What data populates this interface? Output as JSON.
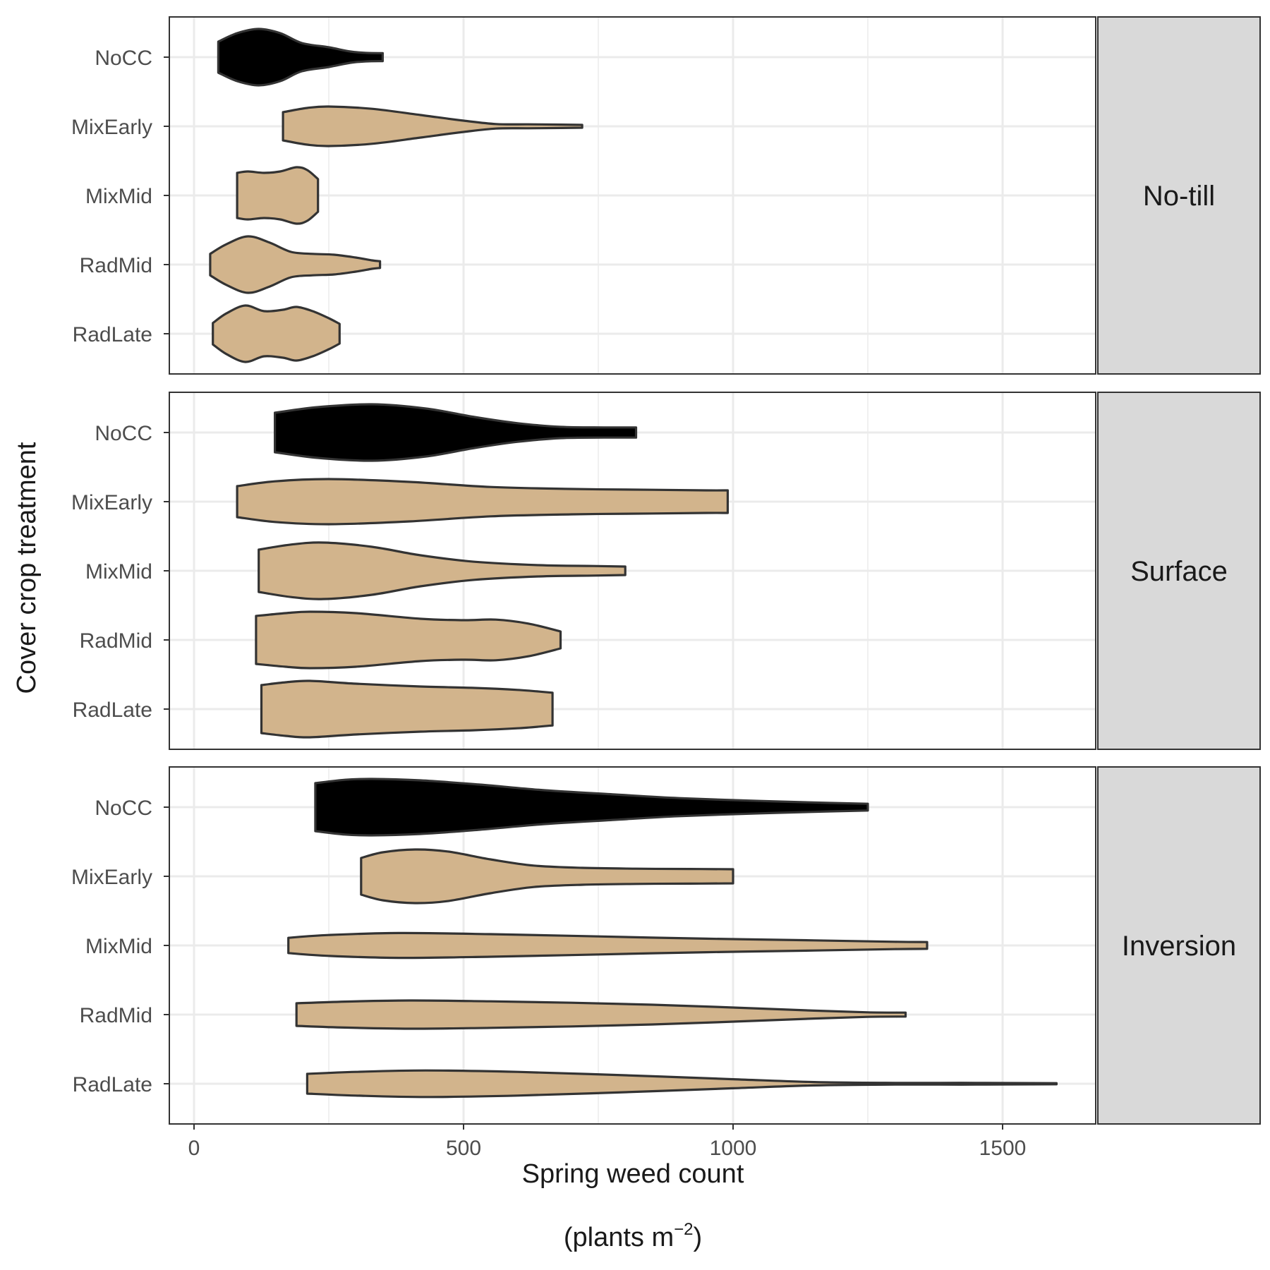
{
  "chart_data": {
    "type": "violin",
    "xlabel": "Spring weed count",
    "xlabel_units": "(plants  m",
    "xlabel_units_sup": "−2",
    "xlabel_units_close": ")",
    "ylabel": "Cover crop treatment",
    "xlim": [
      -50,
      1700
    ],
    "x_ticks": [
      0,
      500,
      1000,
      1500
    ],
    "x_tick_labels": [
      "0",
      "500",
      "1000",
      "1500"
    ],
    "categories": [
      "NoCC",
      "MixEarly",
      "MixMid",
      "RadMid",
      "RadLate"
    ],
    "grid": true,
    "legend": "none",
    "colors": {
      "NoCC": "#000000",
      "other": "#d2b48c",
      "outline": "#333333",
      "strip_fill": "#d9d9d9",
      "grid": "#ebebeb"
    },
    "panels": [
      {
        "label": "No-till",
        "violins": [
          {
            "category": "NoCC",
            "profile": [
              [
                45,
                0.55
              ],
              [
                80,
                0.85
              ],
              [
                120,
                1.0
              ],
              [
                160,
                0.85
              ],
              [
                200,
                0.5
              ],
              [
                250,
                0.35
              ],
              [
                290,
                0.2
              ],
              [
                320,
                0.15
              ],
              [
                350,
                0.14
              ]
            ]
          },
          {
            "category": "MixEarly",
            "profile": [
              [
                165,
                0.5
              ],
              [
                210,
                0.65
              ],
              [
                250,
                0.7
              ],
              [
                330,
                0.62
              ],
              [
                420,
                0.4
              ],
              [
                500,
                0.2
              ],
              [
                560,
                0.08
              ],
              [
                620,
                0.07
              ],
              [
                680,
                0.06
              ],
              [
                720,
                0.05
              ]
            ]
          },
          {
            "category": "MixMid",
            "profile": [
              [
                80,
                0.8
              ],
              [
                100,
                0.85
              ],
              [
                130,
                0.8
              ],
              [
                160,
                0.85
              ],
              [
                190,
                1.0
              ],
              [
                210,
                0.9
              ],
              [
                230,
                0.58
              ]
            ]
          },
          {
            "category": "RadMid",
            "profile": [
              [
                30,
                0.38
              ],
              [
                60,
                0.72
              ],
              [
                100,
                1.0
              ],
              [
                140,
                0.78
              ],
              [
                180,
                0.45
              ],
              [
                220,
                0.38
              ],
              [
                260,
                0.35
              ],
              [
                300,
                0.25
              ],
              [
                330,
                0.15
              ],
              [
                345,
                0.12
              ]
            ]
          },
          {
            "category": "RadLate",
            "profile": [
              [
                35,
                0.38
              ],
              [
                60,
                0.72
              ],
              [
                95,
                1.0
              ],
              [
                130,
                0.8
              ],
              [
                165,
                0.85
              ],
              [
                190,
                0.95
              ],
              [
                220,
                0.8
              ],
              [
                250,
                0.55
              ],
              [
                270,
                0.35
              ]
            ]
          }
        ]
      },
      {
        "label": "Surface",
        "violins": [
          {
            "category": "NoCC",
            "profile": [
              [
                150,
                0.7
              ],
              [
                230,
                0.9
              ],
              [
                330,
                1.0
              ],
              [
                430,
                0.85
              ],
              [
                520,
                0.55
              ],
              [
                600,
                0.33
              ],
              [
                680,
                0.2
              ],
              [
                760,
                0.18
              ],
              [
                820,
                0.18
              ]
            ]
          },
          {
            "category": "MixEarly",
            "profile": [
              [
                80,
                0.55
              ],
              [
                150,
                0.72
              ],
              [
                250,
                0.8
              ],
              [
                400,
                0.7
              ],
              [
                550,
                0.52
              ],
              [
                700,
                0.45
              ],
              [
                850,
                0.42
              ],
              [
                950,
                0.4
              ],
              [
                990,
                0.4
              ]
            ]
          },
          {
            "category": "MixMid",
            "profile": [
              [
                120,
                0.75
              ],
              [
                180,
                0.93
              ],
              [
                240,
                1.0
              ],
              [
                330,
                0.85
              ],
              [
                420,
                0.55
              ],
              [
                520,
                0.32
              ],
              [
                640,
                0.2
              ],
              [
                740,
                0.17
              ],
              [
                800,
                0.15
              ]
            ]
          },
          {
            "category": "RadMid",
            "profile": [
              [
                115,
                0.85
              ],
              [
                170,
                0.95
              ],
              [
                215,
                1.0
              ],
              [
                300,
                0.95
              ],
              [
                420,
                0.75
              ],
              [
                500,
                0.7
              ],
              [
                560,
                0.72
              ],
              [
                620,
                0.58
              ],
              [
                680,
                0.3
              ]
            ]
          },
          {
            "category": "RadLate",
            "profile": [
              [
                125,
                0.85
              ],
              [
                170,
                0.95
              ],
              [
                215,
                1.0
              ],
              [
                300,
                0.9
              ],
              [
                420,
                0.8
              ],
              [
                520,
                0.75
              ],
              [
                600,
                0.68
              ],
              [
                665,
                0.58
              ]
            ]
          }
        ]
      },
      {
        "label": "Inversion",
        "violins": [
          {
            "category": "NoCC",
            "profile": [
              [
                225,
                0.85
              ],
              [
                280,
                0.97
              ],
              [
                330,
                1.0
              ],
              [
                420,
                0.95
              ],
              [
                530,
                0.8
              ],
              [
                650,
                0.6
              ],
              [
                780,
                0.45
              ],
              [
                900,
                0.32
              ],
              [
                1050,
                0.22
              ],
              [
                1180,
                0.15
              ],
              [
                1250,
                0.12
              ]
            ]
          },
          {
            "category": "MixEarly",
            "profile": [
              [
                310,
                0.65
              ],
              [
                350,
                0.85
              ],
              [
                410,
                0.95
              ],
              [
                470,
                0.88
              ],
              [
                550,
                0.6
              ],
              [
                630,
                0.38
              ],
              [
                720,
                0.3
              ],
              [
                820,
                0.27
              ],
              [
                920,
                0.26
              ],
              [
                1000,
                0.25
              ]
            ]
          },
          {
            "category": "MixMid",
            "profile": [
              [
                175,
                0.27
              ],
              [
                250,
                0.37
              ],
              [
                380,
                0.44
              ],
              [
                550,
                0.4
              ],
              [
                750,
                0.32
              ],
              [
                950,
                0.24
              ],
              [
                1150,
                0.18
              ],
              [
                1300,
                0.13
              ],
              [
                1360,
                0.12
              ]
            ]
          },
          {
            "category": "RadMid",
            "profile": [
              [
                190,
                0.4
              ],
              [
                280,
                0.46
              ],
              [
                400,
                0.5
              ],
              [
                550,
                0.47
              ],
              [
                700,
                0.42
              ],
              [
                850,
                0.35
              ],
              [
                1000,
                0.25
              ],
              [
                1150,
                0.14
              ],
              [
                1250,
                0.08
              ],
              [
                1320,
                0.07
              ]
            ]
          },
          {
            "category": "RadLate",
            "profile": [
              [
                210,
                0.35
              ],
              [
                300,
                0.42
              ],
              [
                430,
                0.47
              ],
              [
                600,
                0.42
              ],
              [
                800,
                0.3
              ],
              [
                1000,
                0.16
              ],
              [
                1150,
                0.06
              ],
              [
                1300,
                0.03
              ],
              [
                1450,
                0.03
              ],
              [
                1600,
                0.02
              ]
            ]
          }
        ]
      }
    ]
  }
}
